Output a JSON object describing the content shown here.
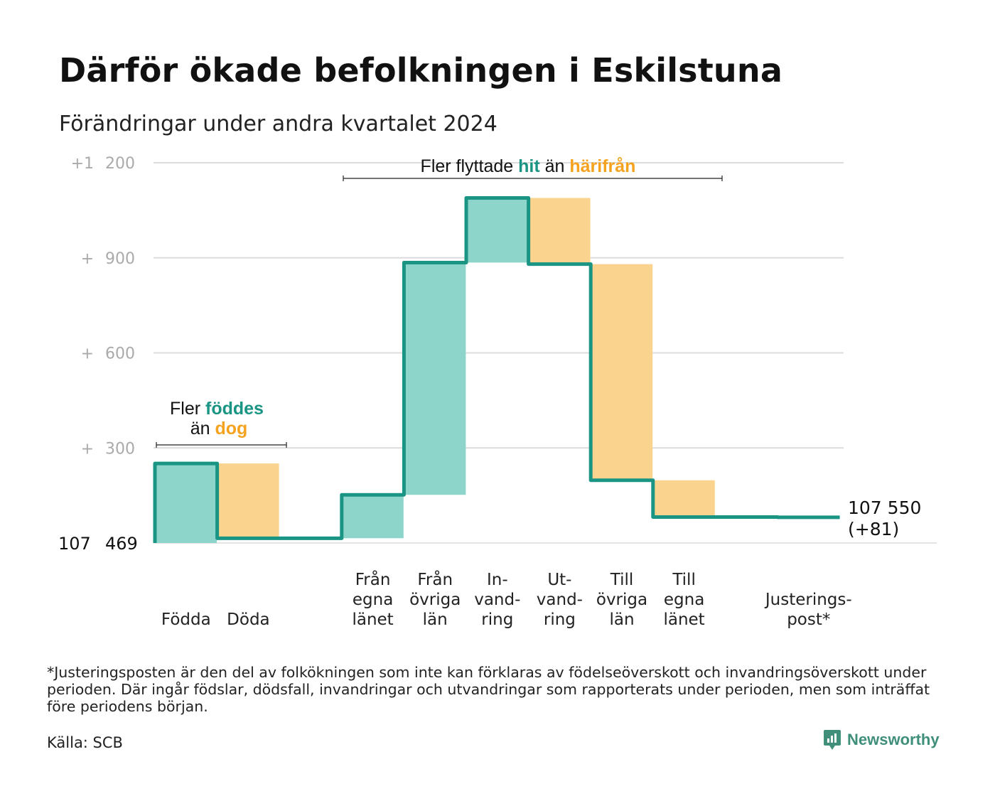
{
  "title": "Därför ökade befolkningen i Eskilstuna",
  "subtitle": "Förändringar under andra kvartalet 2024",
  "footnote": "*Justeringsposten är den del av folkökningen som inte kan förklaras av födelseöverskott och invandringsöverskott under perioden. Där ingår födslar, dödsfall, invandringar och utvandringar som rapporterats under perioden, men som inträffat före periodens början.",
  "source": "Källa: SCB",
  "brand": "Newsworthy",
  "colors": {
    "increase": "#8dd5cb",
    "decrease": "#fad48f",
    "line": "#1a9483",
    "grid": "#dcdcdc",
    "tick": "#aaaaaa",
    "accent_teal": "#1a9483",
    "accent_orange": "#f5a21e"
  },
  "annotations": {
    "births": {
      "prefix": "Fler ",
      "strong1": "föddes",
      "line2_prefix": "än ",
      "strong2": "dog"
    },
    "migration": {
      "prefix": "Fler flyttade ",
      "strong1": "hit",
      "middle": " än ",
      "strong2": "härifrån"
    }
  },
  "chart_data": {
    "type": "waterfall",
    "title": "Därför ökade befolkningen i Eskilstuna",
    "subtitle": "Förändringar under andra kvartalet 2024",
    "start_value": 107469,
    "start_label": "107 469",
    "end_value": 107550,
    "end_label_value": "107 550",
    "end_label_change": "(+81)",
    "ylim": [
      0,
      1200
    ],
    "yticks": [
      {
        "value": 300,
        "sign": "+",
        "num": "300"
      },
      {
        "value": 600,
        "sign": "+",
        "num": "600"
      },
      {
        "value": 900,
        "sign": "+",
        "num": "900"
      },
      {
        "value": 1200,
        "sign": "+1",
        "num": "200"
      }
    ],
    "categories": [
      {
        "label": [
          "Födda"
        ],
        "change": 251,
        "cumulative": 251,
        "kind": "increase"
      },
      {
        "label": [
          "Döda"
        ],
        "change": -236,
        "cumulative": 15,
        "kind": "decrease"
      },
      {
        "label": [],
        "change": 0,
        "cumulative": 15,
        "kind": "none"
      },
      {
        "label": [
          "Från",
          "egna",
          "länet"
        ],
        "change": 137,
        "cumulative": 152,
        "kind": "increase"
      },
      {
        "label": [
          "Från",
          "övriga",
          "län"
        ],
        "change": 733,
        "cumulative": 885,
        "kind": "increase"
      },
      {
        "label": [
          "In-",
          "vand-",
          "ring"
        ],
        "change": 204,
        "cumulative": 1089,
        "kind": "increase"
      },
      {
        "label": [
          "Ut-",
          "vand-",
          "ring"
        ],
        "change": -209,
        "cumulative": 880,
        "kind": "decrease"
      },
      {
        "label": [
          "Till",
          "övriga",
          "län"
        ],
        "change": -682,
        "cumulative": 198,
        "kind": "decrease"
      },
      {
        "label": [
          "Till",
          "egna",
          "länet"
        ],
        "change": -116,
        "cumulative": 82,
        "kind": "decrease"
      },
      {
        "label": [],
        "change": 0,
        "cumulative": 82,
        "kind": "none"
      },
      {
        "label": [
          "Justerings-",
          "post*"
        ],
        "change": -1,
        "cumulative": 81,
        "kind": "adjustment"
      }
    ]
  }
}
